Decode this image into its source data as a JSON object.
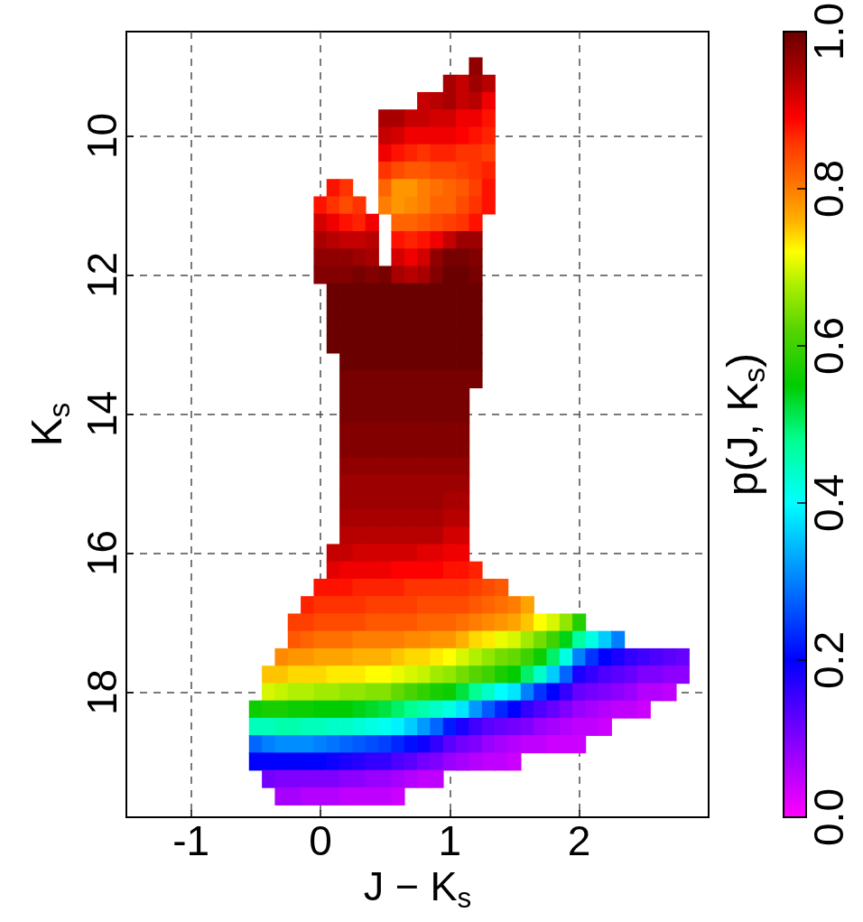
{
  "chart_data": {
    "type": "scatter",
    "marker": "square",
    "xlabel": "J − K$_{s}$",
    "ylabel": "K$_{s}$",
    "clabel": "p(J, K$_{s}$)",
    "xlim": [
      -1.5,
      3
    ],
    "xticks": [
      -1,
      0,
      1,
      2
    ],
    "ylim": [
      19.8,
      8.5
    ],
    "yticks": [
      10,
      12,
      14,
      16,
      18
    ],
    "clim": [
      0,
      1
    ],
    "cticks": [
      {
        "value": 0,
        "label": "0.0"
      },
      0.2,
      0.4,
      0.6,
      0.8,
      {
        "value": 1,
        "label": "1.0"
      }
    ],
    "grid": true,
    "x": [
      1.2,
      1,
      1.1,
      1.2,
      1.3,
      0.8,
      0.9,
      1,
      1.1,
      1.2,
      1.3,
      0.5,
      0.6,
      0.7,
      0.8,
      0.9,
      1,
      1.1,
      1.2,
      1.3,
      0.5,
      0.6,
      0.7,
      0.8,
      0.9,
      1,
      1.1,
      1.2,
      1.3,
      0.5,
      0.6,
      0.7,
      0.8,
      0.9,
      1,
      1.1,
      1.2,
      1.3,
      0.5,
      0.6,
      0.7,
      0.8,
      0.9,
      1,
      1.1,
      1.2,
      1.3,
      0.1,
      0.2,
      0.5,
      0.6,
      0.7,
      0.8,
      0.9,
      1,
      1.1,
      1.2,
      1.3,
      0,
      0.1,
      0.2,
      0.3,
      0.5,
      0.6,
      0.7,
      0.8,
      0.9,
      1,
      1.1,
      1.2,
      1.3,
      0,
      0.1,
      0.2,
      0.3,
      0.4,
      0.6,
      0.7,
      0.8,
      0.9,
      1,
      1.1,
      1.2,
      0,
      0.1,
      0.2,
      0.3,
      0.4,
      0.6,
      0.7,
      0.8,
      0.9,
      1,
      1.1,
      1.2,
      0,
      0.1,
      0.2,
      0.3,
      0.4,
      0.6,
      0.7,
      0.8,
      0.9,
      1,
      1.1,
      1.2,
      0,
      0.1,
      0.2,
      0.3,
      0.4,
      0.5,
      0.6,
      0.7,
      0.8,
      0.9,
      1,
      1.1,
      1.2,
      0.1,
      0.2,
      0.3,
      0.4,
      0.5,
      0.6,
      0.7,
      0.8,
      0.9,
      1,
      1.1,
      1.2,
      0.1,
      0.2,
      0.3,
      0.4,
      0.5,
      0.6,
      0.7,
      0.8,
      0.9,
      1,
      1.1,
      1.2,
      0.1,
      0.2,
      0.3,
      0.4,
      0.5,
      0.6,
      0.7,
      0.8,
      0.9,
      1,
      1.1,
      1.2,
      0.1,
      0.2,
      0.3,
      0.4,
      0.5,
      0.6,
      0.7,
      0.8,
      0.9,
      1,
      1.1,
      1.2,
      0.2,
      0.3,
      0.4,
      0.5,
      0.6,
      0.7,
      0.8,
      0.9,
      1,
      1.1,
      1.2,
      0.2,
      0.3,
      0.4,
      0.5,
      0.6,
      0.7,
      0.8,
      0.9,
      1,
      1.1,
      1.2,
      0.2,
      0.3,
      0.4,
      0.5,
      0.6,
      0.7,
      0.8,
      0.9,
      1,
      1.1,
      0.2,
      0.3,
      0.4,
      0.5,
      0.6,
      0.7,
      0.8,
      0.9,
      1,
      1.1,
      0.2,
      0.3,
      0.4,
      0.5,
      0.6,
      0.7,
      0.8,
      0.9,
      1,
      1.1,
      0.2,
      0.3,
      0.4,
      0.5,
      0.6,
      0.7,
      0.8,
      0.9,
      1,
      1.1,
      0.2,
      0.3,
      0.4,
      0.5,
      0.6,
      0.7,
      0.8,
      0.9,
      1,
      1.1,
      0.2,
      0.3,
      0.4,
      0.5,
      0.6,
      0.7,
      0.8,
      0.9,
      1,
      1.1,
      0.2,
      0.3,
      0.4,
      0.5,
      0.6,
      0.7,
      0.8,
      0.9,
      1,
      1.1,
      0.2,
      0.3,
      0.4,
      0.5,
      0.6,
      0.7,
      0.8,
      0.9,
      1,
      1.1,
      0.2,
      0.3,
      0.4,
      0.5,
      0.6,
      0.7,
      0.8,
      0.9,
      1,
      1.1,
      0.1,
      0.2,
      0.3,
      0.4,
      0.5,
      0.6,
      0.7,
      0.8,
      0.9,
      1,
      1.1,
      0.1,
      0.2,
      0.3,
      0.4,
      0.5,
      0.6,
      0.7,
      0.8,
      0.9,
      1,
      1.1,
      1.2,
      0,
      0.1,
      0.2,
      0.3,
      0.4,
      0.5,
      0.6,
      0.7,
      0.8,
      0.9,
      1,
      1.1,
      1.2,
      1.3,
      1.4,
      -0.1,
      0,
      0.1,
      0.2,
      0.3,
      0.4,
      0.5,
      0.6,
      0.7,
      0.8,
      0.9,
      1,
      1.1,
      1.2,
      1.3,
      1.4,
      1.5,
      1.6,
      -0.2,
      -0.1,
      0,
      0.1,
      0.2,
      0.3,
      0.4,
      0.5,
      0.6,
      0.7,
      0.8,
      0.9,
      1,
      1.1,
      1.2,
      1.3,
      1.4,
      1.5,
      1.6,
      1.7,
      1.8,
      1.9,
      2,
      -0.2,
      -0.1,
      0,
      0.1,
      0.2,
      0.3,
      0.4,
      0.5,
      0.6,
      0.7,
      0.8,
      0.9,
      1,
      1.1,
      1.2,
      1.3,
      1.4,
      1.5,
      1.6,
      1.7,
      1.8,
      1.9,
      2,
      2.1,
      2.2,
      2.3,
      -0.3,
      -0.2,
      -0.1,
      0,
      0.1,
      0.2,
      0.3,
      0.4,
      0.5,
      0.6,
      0.7,
      0.8,
      0.9,
      1,
      1.1,
      1.2,
      1.3,
      1.4,
      1.5,
      1.6,
      1.7,
      1.8,
      1.9,
      2,
      2.1,
      2.2,
      2.3,
      2.4,
      2.5,
      2.6,
      2.7,
      2.8,
      -0.4,
      -0.3,
      -0.2,
      -0.1,
      0,
      0.1,
      0.2,
      0.3,
      0.4,
      0.5,
      0.6,
      0.7,
      0.8,
      0.9,
      1,
      1.1,
      1.2,
      1.3,
      1.4,
      1.5,
      1.6,
      1.7,
      1.8,
      1.9,
      2,
      2.1,
      2.2,
      2.3,
      2.4,
      2.5,
      2.6,
      2.7,
      2.8,
      -0.4,
      -0.3,
      -0.2,
      -0.1,
      0,
      0.1,
      0.2,
      0.3,
      0.4,
      0.5,
      0.6,
      0.7,
      0.8,
      0.9,
      1,
      1.1,
      1.2,
      1.3,
      1.4,
      1.5,
      1.6,
      1.7,
      1.8,
      1.9,
      2,
      2.1,
      2.2,
      2.3,
      2.4,
      2.5,
      2.6,
      2.7,
      -0.5,
      -0.4,
      -0.3,
      -0.2,
      -0.1,
      0,
      0.1,
      0.2,
      0.3,
      0.4,
      0.5,
      0.6,
      0.7,
      0.8,
      0.9,
      1,
      1.1,
      1.2,
      1.3,
      1.4,
      1.5,
      1.6,
      1.7,
      1.8,
      1.9,
      2,
      2.1,
      2.2,
      2.3,
      2.4,
      2.5,
      -0.5,
      -0.4,
      -0.3,
      -0.2,
      -0.1,
      0,
      0.1,
      0.2,
      0.3,
      0.4,
      0.5,
      0.6,
      0.7,
      0.8,
      0.9,
      1,
      1.1,
      1.2,
      1.3,
      1.4,
      1.5,
      1.6,
      1.7,
      1.8,
      1.9,
      2,
      2.1,
      2.2,
      -0.5,
      -0.4,
      -0.3,
      -0.2,
      -0.1,
      0,
      0.1,
      0.2,
      0.3,
      0.4,
      0.5,
      0.6,
      0.7,
      0.8,
      0.9,
      1,
      1.1,
      1.2,
      1.3,
      1.4,
      1.5,
      1.6,
      1.7,
      1.8,
      1.9,
      2,
      -0.5,
      -0.4,
      -0.3,
      -0.2,
      -0.1,
      0,
      0.1,
      0.2,
      0.3,
      0.4,
      0.5,
      0.6,
      0.7,
      0.8,
      0.9,
      1,
      1.1,
      1.2,
      1.3,
      1.4,
      1.5,
      -0.4,
      -0.3,
      -0.2,
      -0.1,
      0,
      0.1,
      0.2,
      0.3,
      0.4,
      0.5,
      0.6,
      0.7,
      0.8,
      0.9,
      -0.3,
      -0.2,
      -0.1,
      0,
      0.1,
      0.2,
      0.3,
      0.4,
      0.5,
      0.6
    ],
    "values": [
      9,
      9.25,
      9.25,
      9.25,
      9.25,
      9.5,
      9.5,
      9.5,
      9.5,
      9.5,
      9.5,
      9.75,
      9.75,
      9.75,
      9.75,
      9.75,
      9.75,
      9.75,
      9.75,
      9.75,
      10,
      10,
      10,
      10,
      10,
      10,
      10,
      10,
      10,
      10.25,
      10.25,
      10.25,
      10.25,
      10.25,
      10.25,
      10.25,
      10.25,
      10.25,
      10.5,
      10.5,
      10.5,
      10.5,
      10.5,
      10.5,
      10.5,
      10.5,
      10.5,
      10.75,
      10.75,
      10.75,
      10.75,
      10.75,
      10.75,
      10.75,
      10.75,
      10.75,
      10.75,
      10.75,
      11,
      11,
      11,
      11,
      11,
      11,
      11,
      11,
      11,
      11,
      11,
      11,
      11,
      11.25,
      11.25,
      11.25,
      11.25,
      11.25,
      11.25,
      11.25,
      11.25,
      11.25,
      11.25,
      11.25,
      11.25,
      11.5,
      11.5,
      11.5,
      11.5,
      11.5,
      11.5,
      11.5,
      11.5,
      11.5,
      11.5,
      11.5,
      11.5,
      11.75,
      11.75,
      11.75,
      11.75,
      11.75,
      11.75,
      11.75,
      11.75,
      11.75,
      11.75,
      11.75,
      11.75,
      12,
      12,
      12,
      12,
      12,
      12,
      12,
      12,
      12,
      12,
      12,
      12,
      12,
      12.25,
      12.25,
      12.25,
      12.25,
      12.25,
      12.25,
      12.25,
      12.25,
      12.25,
      12.25,
      12.25,
      12.25,
      12.5,
      12.5,
      12.5,
      12.5,
      12.5,
      12.5,
      12.5,
      12.5,
      12.5,
      12.5,
      12.5,
      12.5,
      12.75,
      12.75,
      12.75,
      12.75,
      12.75,
      12.75,
      12.75,
      12.75,
      12.75,
      12.75,
      12.75,
      12.75,
      13,
      13,
      13,
      13,
      13,
      13,
      13,
      13,
      13,
      13,
      13,
      13,
      13.25,
      13.25,
      13.25,
      13.25,
      13.25,
      13.25,
      13.25,
      13.25,
      13.25,
      13.25,
      13.25,
      13.5,
      13.5,
      13.5,
      13.5,
      13.5,
      13.5,
      13.5,
      13.5,
      13.5,
      13.5,
      13.5,
      13.75,
      13.75,
      13.75,
      13.75,
      13.75,
      13.75,
      13.75,
      13.75,
      13.75,
      13.75,
      14,
      14,
      14,
      14,
      14,
      14,
      14,
      14,
      14,
      14,
      14.25,
      14.25,
      14.25,
      14.25,
      14.25,
      14.25,
      14.25,
      14.25,
      14.25,
      14.25,
      14.5,
      14.5,
      14.5,
      14.5,
      14.5,
      14.5,
      14.5,
      14.5,
      14.5,
      14.5,
      14.75,
      14.75,
      14.75,
      14.75,
      14.75,
      14.75,
      14.75,
      14.75,
      14.75,
      14.75,
      15,
      15,
      15,
      15,
      15,
      15,
      15,
      15,
      15,
      15,
      15.25,
      15.25,
      15.25,
      15.25,
      15.25,
      15.25,
      15.25,
      15.25,
      15.25,
      15.25,
      15.5,
      15.5,
      15.5,
      15.5,
      15.5,
      15.5,
      15.5,
      15.5,
      15.5,
      15.5,
      15.75,
      15.75,
      15.75,
      15.75,
      15.75,
      15.75,
      15.75,
      15.75,
      15.75,
      15.75,
      16,
      16,
      16,
      16,
      16,
      16,
      16,
      16,
      16,
      16,
      16,
      16.25,
      16.25,
      16.25,
      16.25,
      16.25,
      16.25,
      16.25,
      16.25,
      16.25,
      16.25,
      16.25,
      16.25,
      16.5,
      16.5,
      16.5,
      16.5,
      16.5,
      16.5,
      16.5,
      16.5,
      16.5,
      16.5,
      16.5,
      16.5,
      16.5,
      16.5,
      16.5,
      16.75,
      16.75,
      16.75,
      16.75,
      16.75,
      16.75,
      16.75,
      16.75,
      16.75,
      16.75,
      16.75,
      16.75,
      16.75,
      16.75,
      16.75,
      16.75,
      16.75,
      16.75,
      17,
      17,
      17,
      17,
      17,
      17,
      17,
      17,
      17,
      17,
      17,
      17,
      17,
      17,
      17,
      17,
      17,
      17,
      17,
      17,
      17,
      17,
      17,
      17.25,
      17.25,
      17.25,
      17.25,
      17.25,
      17.25,
      17.25,
      17.25,
      17.25,
      17.25,
      17.25,
      17.25,
      17.25,
      17.25,
      17.25,
      17.25,
      17.25,
      17.25,
      17.25,
      17.25,
      17.25,
      17.25,
      17.25,
      17.25,
      17.25,
      17.25,
      17.5,
      17.5,
      17.5,
      17.5,
      17.5,
      17.5,
      17.5,
      17.5,
      17.5,
      17.5,
      17.5,
      17.5,
      17.5,
      17.5,
      17.5,
      17.5,
      17.5,
      17.5,
      17.5,
      17.5,
      17.5,
      17.5,
      17.5,
      17.5,
      17.5,
      17.5,
      17.5,
      17.5,
      17.5,
      17.5,
      17.5,
      17.5,
      17.75,
      17.75,
      17.75,
      17.75,
      17.75,
      17.75,
      17.75,
      17.75,
      17.75,
      17.75,
      17.75,
      17.75,
      17.75,
      17.75,
      17.75,
      17.75,
      17.75,
      17.75,
      17.75,
      17.75,
      17.75,
      17.75,
      17.75,
      17.75,
      17.75,
      17.75,
      17.75,
      17.75,
      17.75,
      17.75,
      17.75,
      17.75,
      17.75,
      18,
      18,
      18,
      18,
      18,
      18,
      18,
      18,
      18,
      18,
      18,
      18,
      18,
      18,
      18,
      18,
      18,
      18,
      18,
      18,
      18,
      18,
      18,
      18,
      18,
      18,
      18,
      18,
      18,
      18,
      18,
      18,
      18.25,
      18.25,
      18.25,
      18.25,
      18.25,
      18.25,
      18.25,
      18.25,
      18.25,
      18.25,
      18.25,
      18.25,
      18.25,
      18.25,
      18.25,
      18.25,
      18.25,
      18.25,
      18.25,
      18.25,
      18.25,
      18.25,
      18.25,
      18.25,
      18.25,
      18.25,
      18.25,
      18.25,
      18.25,
      18.25,
      18.25,
      18.5,
      18.5,
      18.5,
      18.5,
      18.5,
      18.5,
      18.5,
      18.5,
      18.5,
      18.5,
      18.5,
      18.5,
      18.5,
      18.5,
      18.5,
      18.5,
      18.5,
      18.5,
      18.5,
      18.5,
      18.5,
      18.5,
      18.5,
      18.5,
      18.5,
      18.5,
      18.5,
      18.5,
      18.75,
      18.75,
      18.75,
      18.75,
      18.75,
      18.75,
      18.75,
      18.75,
      18.75,
      18.75,
      18.75,
      18.75,
      18.75,
      18.75,
      18.75,
      18.75,
      18.75,
      18.75,
      18.75,
      18.75,
      18.75,
      18.75,
      18.75,
      18.75,
      18.75,
      18.75,
      19,
      19,
      19,
      19,
      19,
      19,
      19,
      19,
      19,
      19,
      19,
      19,
      19,
      19,
      19,
      19,
      19,
      19,
      19,
      19,
      19,
      19.25,
      19.25,
      19.25,
      19.25,
      19.25,
      19.25,
      19.25,
      19.25,
      19.25,
      19.25,
      19.25,
      19.25,
      19.25,
      19.25,
      19.5,
      19.5,
      19.5,
      19.5,
      19.5,
      19.5,
      19.5,
      19.5,
      19.5,
      19.5
    ],
    "cvalues": [
      0.97,
      0.95,
      0.93,
      0.96,
      0.94,
      0.93,
      0.94,
      0.95,
      0.93,
      0.94,
      0.9,
      0.95,
      0.95,
      0.93,
      0.93,
      0.92,
      0.92,
      0.9,
      0.9,
      0.88,
      0.93,
      0.92,
      0.9,
      0.9,
      0.9,
      0.9,
      0.89,
      0.88,
      0.87,
      0.9,
      0.88,
      0.87,
      0.86,
      0.87,
      0.87,
      0.86,
      0.86,
      0.85,
      0.86,
      0.84,
      0.83,
      0.83,
      0.84,
      0.84,
      0.85,
      0.86,
      0.87,
      0.88,
      0.86,
      0.82,
      0.78,
      0.78,
      0.8,
      0.81,
      0.82,
      0.83,
      0.85,
      0.88,
      0.88,
      0.86,
      0.84,
      0.86,
      0.8,
      0.78,
      0.79,
      0.8,
      0.82,
      0.82,
      0.84,
      0.86,
      0.88,
      0.92,
      0.9,
      0.88,
      0.87,
      0.9,
      0.82,
      0.82,
      0.83,
      0.84,
      0.85,
      0.86,
      0.88,
      0.95,
      0.94,
      0.93,
      0.93,
      0.94,
      0.88,
      0.87,
      0.88,
      0.9,
      0.93,
      0.96,
      0.96,
      0.97,
      0.97,
      0.97,
      0.96,
      0.95,
      0.92,
      0.9,
      0.92,
      0.97,
      0.99,
      0.99,
      0.98,
      0.98,
      0.98,
      0.98,
      0.99,
      0.98,
      0.99,
      0.95,
      0.94,
      0.95,
      0.98,
      1,
      1,
      0.99,
      1,
      1,
      1,
      1,
      1,
      1,
      1,
      1,
      1,
      1,
      1,
      1,
      1,
      1,
      1,
      1,
      1,
      1,
      1,
      1,
      1,
      1,
      1,
      1,
      1,
      1,
      1,
      1,
      1,
      1,
      1,
      1,
      1,
      1,
      1,
      1,
      1,
      1,
      1,
      1,
      1,
      1,
      1,
      1,
      1,
      1,
      1,
      1,
      1,
      1,
      1,
      1,
      1,
      1,
      1,
      1,
      1,
      1,
      1,
      0.99,
      0.99,
      0.99,
      0.99,
      0.99,
      0.99,
      0.99,
      0.99,
      0.99,
      0.99,
      0.99,
      0.99,
      0.99,
      0.99,
      0.99,
      0.99,
      0.99,
      0.99,
      0.99,
      0.99,
      0.99,
      0.99,
      0.99,
      0.99,
      0.99,
      0.99,
      0.99,
      0.99,
      0.99,
      0.99,
      0.99,
      0.98,
      0.98,
      0.98,
      0.98,
      0.98,
      0.98,
      0.98,
      0.98,
      0.98,
      0.98,
      0.98,
      0.98,
      0.98,
      0.98,
      0.98,
      0.98,
      0.98,
      0.98,
      0.98,
      0.98,
      0.97,
      0.97,
      0.97,
      0.97,
      0.97,
      0.97,
      0.97,
      0.97,
      0.97,
      0.97,
      0.96,
      0.96,
      0.96,
      0.96,
      0.96,
      0.96,
      0.96,
      0.96,
      0.96,
      0.96,
      0.96,
      0.96,
      0.96,
      0.96,
      0.96,
      0.96,
      0.96,
      0.96,
      0.95,
      0.95,
      0.95,
      0.95,
      0.95,
      0.95,
      0.95,
      0.95,
      0.95,
      0.95,
      0.94,
      0.94,
      0.94,
      0.94,
      0.94,
      0.94,
      0.94,
      0.94,
      0.94,
      0.94,
      0.92,
      0.92,
      0.93,
      0.93,
      0.92,
      0.92,
      0.92,
      0.92,
      0.92,
      0.91,
      0.91,
      0.9,
      0.9,
      0.91,
      0.9,
      0.9,
      0.9,
      0.9,
      0.89,
      0.89,
      0.89,
      0.89,
      0.88,
      0.88,
      0.87,
      0.88,
      0.88,
      0.88,
      0.87,
      0.87,
      0.87,
      0.87,
      0.86,
      0.86,
      0.86,
      0.86,
      0.86,
      0.85,
      0.84,
      0.83,
      0.87,
      0.86,
      0.86,
      0.86,
      0.86,
      0.85,
      0.85,
      0.85,
      0.85,
      0.84,
      0.84,
      0.84,
      0.84,
      0.83,
      0.82,
      0.81,
      0.8,
      0.77,
      0.85,
      0.85,
      0.84,
      0.84,
      0.84,
      0.84,
      0.83,
      0.83,
      0.83,
      0.83,
      0.82,
      0.82,
      0.82,
      0.81,
      0.8,
      0.79,
      0.78,
      0.77,
      0.75,
      0.72,
      0.7,
      0.66,
      0.58,
      0.83,
      0.82,
      0.81,
      0.81,
      0.81,
      0.8,
      0.8,
      0.8,
      0.8,
      0.79,
      0.79,
      0.78,
      0.78,
      0.76,
      0.74,
      0.73,
      0.71,
      0.7,
      0.67,
      0.64,
      0.6,
      0.54,
      0.47,
      0.42,
      0.36,
      0.3,
      0.79,
      0.78,
      0.78,
      0.77,
      0.77,
      0.77,
      0.76,
      0.76,
      0.76,
      0.75,
      0.74,
      0.74,
      0.73,
      0.72,
      0.7,
      0.68,
      0.66,
      0.64,
      0.63,
      0.6,
      0.56,
      0.5,
      0.42,
      0.3,
      0.24,
      0.2,
      0.18,
      0.16,
      0.15,
      0.14,
      0.13,
      0.12,
      0.75,
      0.75,
      0.74,
      0.74,
      0.74,
      0.73,
      0.73,
      0.73,
      0.72,
      0.72,
      0.71,
      0.7,
      0.69,
      0.67,
      0.66,
      0.64,
      0.62,
      0.6,
      0.57,
      0.55,
      0.5,
      0.44,
      0.36,
      0.28,
      0.18,
      0.16,
      0.14,
      0.13,
      0.12,
      0.1,
      0.1,
      0.09,
      0.09,
      0.7,
      0.69,
      0.68,
      0.68,
      0.67,
      0.67,
      0.66,
      0.66,
      0.65,
      0.65,
      0.63,
      0.61,
      0.59,
      0.57,
      0.56,
      0.52,
      0.48,
      0.44,
      0.4,
      0.38,
      0.3,
      0.24,
      0.2,
      0.16,
      0.12,
      0.11,
      0.1,
      0.09,
      0.08,
      0.06,
      0.06,
      0.05,
      0.56,
      0.57,
      0.57,
      0.56,
      0.56,
      0.55,
      0.55,
      0.55,
      0.54,
      0.53,
      0.52,
      0.5,
      0.48,
      0.46,
      0.44,
      0.42,
      0.38,
      0.32,
      0.27,
      0.23,
      0.2,
      0.16,
      0.14,
      0.12,
      0.1,
      0.08,
      0.07,
      0.06,
      0.05,
      0.05,
      0.04,
      0.45,
      0.45,
      0.46,
      0.46,
      0.45,
      0.45,
      0.44,
      0.44,
      0.43,
      0.42,
      0.41,
      0.39,
      0.36,
      0.32,
      0.28,
      0.22,
      0.18,
      0.15,
      0.13,
      0.12,
      0.11,
      0.1,
      0.08,
      0.07,
      0.06,
      0.05,
      0.05,
      0.04,
      0.28,
      0.3,
      0.31,
      0.31,
      0.31,
      0.3,
      0.29,
      0.28,
      0.27,
      0.26,
      0.25,
      0.23,
      0.21,
      0.19,
      0.16,
      0.13,
      0.11,
      0.1,
      0.08,
      0.07,
      0.06,
      0.05,
      0.05,
      0.04,
      0.04,
      0.04,
      0.2,
      0.2,
      0.2,
      0.2,
      0.2,
      0.2,
      0.19,
      0.18,
      0.17,
      0.16,
      0.16,
      0.14,
      0.13,
      0.11,
      0.1,
      0.08,
      0.07,
      0.06,
      0.05,
      0.05,
      0.04,
      0.11,
      0.1,
      0.1,
      0.1,
      0.1,
      0.1,
      0.09,
      0.09,
      0.08,
      0.08,
      0.07,
      0.06,
      0.05,
      0.05,
      0.07,
      0.07,
      0.06,
      0.06,
      0.06,
      0.05,
      0.05,
      0.05,
      0.05,
      0.04
    ]
  }
}
